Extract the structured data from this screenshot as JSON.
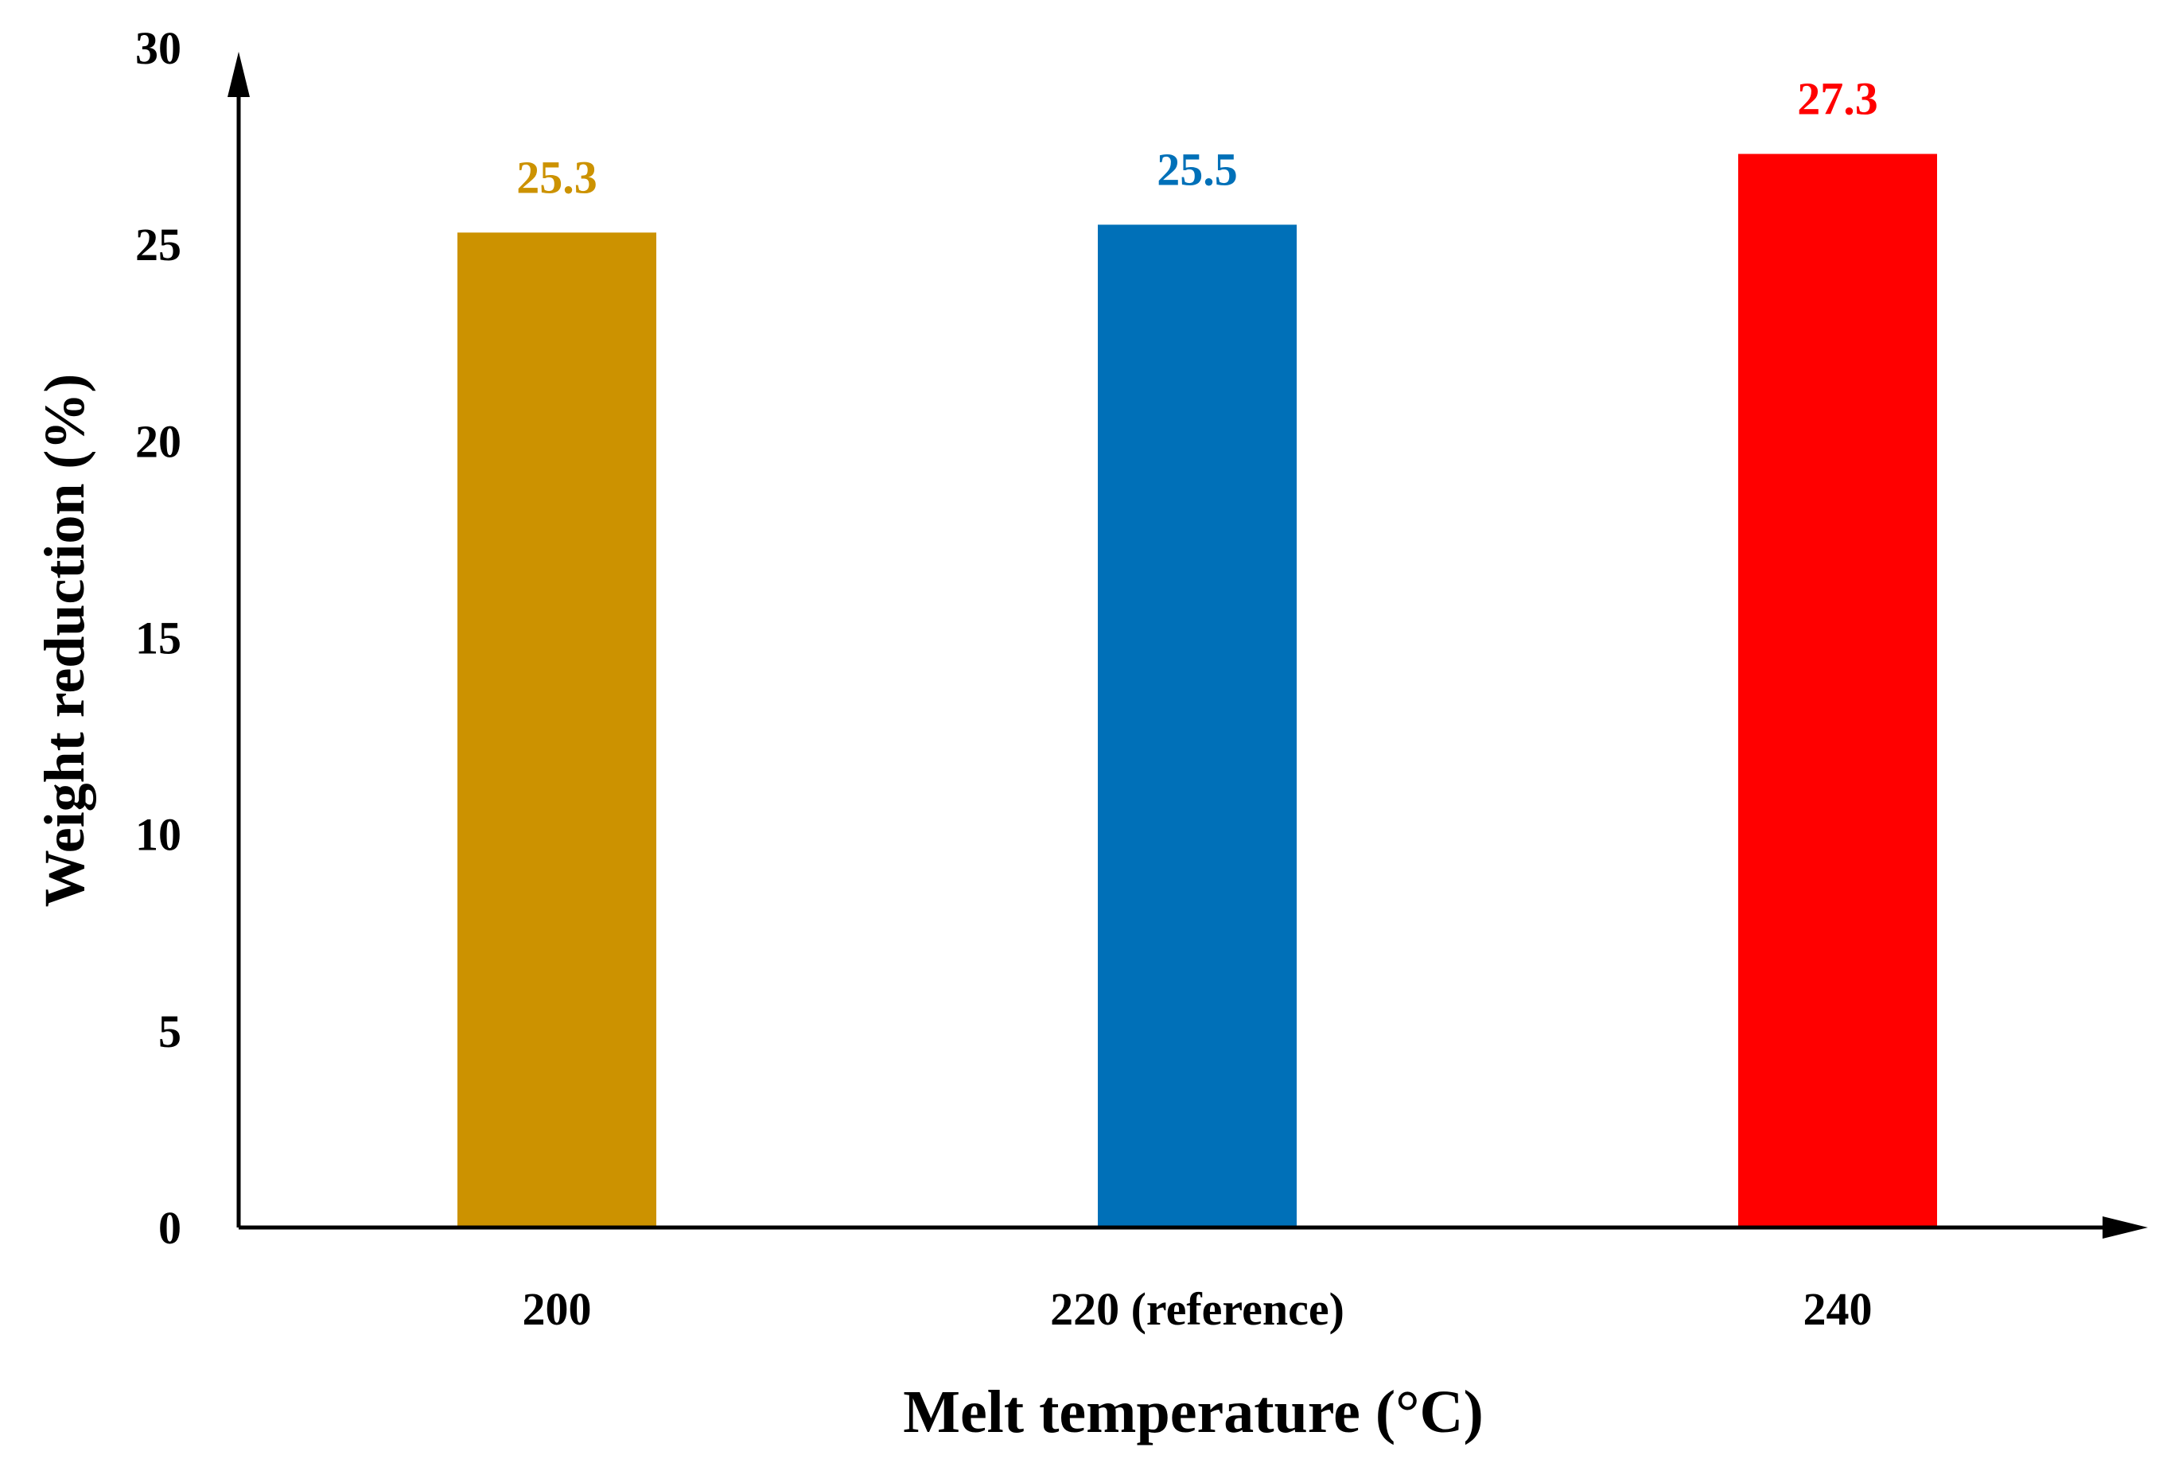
{
  "chart_data": {
    "type": "bar",
    "title": "",
    "xlabel": "Melt temperature (°C)",
    "ylabel": "Weight reduction (%)",
    "categories": [
      "200",
      "220 (reference)",
      "240"
    ],
    "values": [
      25.3,
      25.5,
      27.3
    ],
    "data_labels": [
      "25.3",
      "25.5",
      "27.3"
    ],
    "bar_colors": [
      "#CC9200",
      "#0070B8",
      "#FF0000"
    ],
    "ylim": [
      0,
      30
    ],
    "yticks": [
      0,
      5,
      10,
      15,
      20,
      25,
      30
    ],
    "grid": false,
    "legend": "none"
  }
}
